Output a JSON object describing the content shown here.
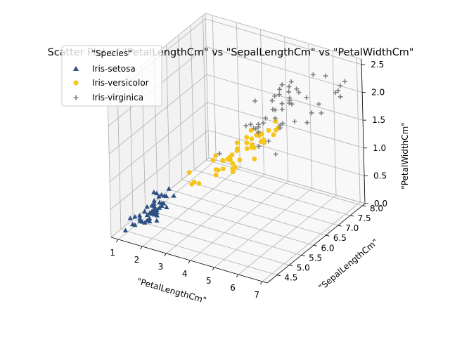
{
  "chart_data": {
    "type": "scatter",
    "projection": "3d",
    "title": "Scatter Plot of \"PetalLengthCm\" vs \"SepalLengthCm\" vs \"PetalWidthCm\"",
    "xlabel": "\"PetalLengthCm\"",
    "ylabel": "\"SepalLengthCm\"",
    "zlabel": "\"PetalWidthCm\"",
    "xlim": [
      0.7,
      7.2
    ],
    "ylim": [
      4.1,
      8.1
    ],
    "zlim": [
      0.0,
      2.6
    ],
    "xticks": [
      "1",
      "2",
      "3",
      "4",
      "5",
      "6",
      "7"
    ],
    "yticks": [
      "4.5",
      "5.0",
      "5.5",
      "6.0",
      "6.5",
      "7.0",
      "7.5",
      "8.0"
    ],
    "zticks": [
      "0.0",
      "0.5",
      "1.0",
      "1.5",
      "2.0",
      "2.5"
    ],
    "grid": true,
    "legend": {
      "title": "\"Species\"",
      "placement": "upper-left"
    },
    "series": [
      {
        "name": "Iris-setosa",
        "color": "#2d4f82",
        "marker": "triangle",
        "points": [
          [
            1.4,
            5.1,
            0.2
          ],
          [
            1.4,
            4.9,
            0.2
          ],
          [
            1.3,
            4.7,
            0.2
          ],
          [
            1.5,
            4.6,
            0.2
          ],
          [
            1.4,
            5.0,
            0.2
          ],
          [
            1.7,
            5.4,
            0.4
          ],
          [
            1.4,
            4.6,
            0.3
          ],
          [
            1.5,
            5.0,
            0.2
          ],
          [
            1.4,
            4.4,
            0.2
          ],
          [
            1.5,
            4.9,
            0.1
          ],
          [
            1.5,
            5.4,
            0.2
          ],
          [
            1.6,
            4.8,
            0.2
          ],
          [
            1.4,
            4.8,
            0.1
          ],
          [
            1.1,
            4.3,
            0.1
          ],
          [
            1.2,
            5.8,
            0.2
          ],
          [
            1.5,
            5.7,
            0.4
          ],
          [
            1.3,
            5.4,
            0.4
          ],
          [
            1.4,
            5.1,
            0.3
          ],
          [
            1.7,
            5.7,
            0.3
          ],
          [
            1.5,
            5.1,
            0.3
          ],
          [
            1.7,
            5.4,
            0.2
          ],
          [
            1.5,
            5.1,
            0.4
          ],
          [
            1.0,
            4.6,
            0.2
          ],
          [
            1.7,
            5.1,
            0.5
          ],
          [
            1.9,
            4.8,
            0.2
          ],
          [
            1.6,
            5.0,
            0.2
          ],
          [
            1.6,
            5.0,
            0.4
          ],
          [
            1.5,
            5.2,
            0.2
          ],
          [
            1.4,
            5.2,
            0.2
          ],
          [
            1.6,
            4.7,
            0.2
          ],
          [
            1.6,
            4.8,
            0.2
          ],
          [
            1.5,
            5.4,
            0.4
          ],
          [
            1.5,
            5.2,
            0.1
          ],
          [
            1.4,
            5.5,
            0.2
          ],
          [
            1.2,
            5.0,
            0.2
          ],
          [
            1.3,
            5.5,
            0.2
          ],
          [
            1.3,
            4.4,
            0.2
          ],
          [
            1.5,
            5.1,
            0.2
          ],
          [
            1.3,
            5.0,
            0.3
          ],
          [
            1.3,
            4.5,
            0.3
          ],
          [
            1.6,
            5.0,
            0.6
          ],
          [
            1.9,
            5.1,
            0.4
          ],
          [
            1.4,
            4.8,
            0.3
          ],
          [
            1.6,
            5.1,
            0.2
          ],
          [
            1.4,
            4.6,
            0.2
          ],
          [
            1.5,
            5.3,
            0.2
          ],
          [
            1.4,
            5.0,
            0.2
          ]
        ]
      },
      {
        "name": "Iris-versicolor",
        "color": "#f5c518",
        "marker": "circle",
        "points": [
          [
            4.7,
            7.0,
            1.4
          ],
          [
            4.5,
            6.4,
            1.5
          ],
          [
            4.9,
            6.9,
            1.5
          ],
          [
            4.0,
            5.5,
            1.3
          ],
          [
            4.6,
            6.5,
            1.5
          ],
          [
            4.5,
            5.7,
            1.3
          ],
          [
            4.7,
            6.3,
            1.6
          ],
          [
            3.3,
            4.9,
            1.0
          ],
          [
            4.6,
            6.6,
            1.3
          ],
          [
            3.9,
            5.2,
            1.4
          ],
          [
            3.5,
            5.0,
            1.0
          ],
          [
            4.2,
            5.9,
            1.5
          ],
          [
            4.0,
            6.0,
            1.0
          ],
          [
            4.7,
            6.1,
            1.4
          ],
          [
            3.6,
            5.6,
            1.3
          ],
          [
            4.4,
            6.7,
            1.4
          ],
          [
            4.5,
            5.6,
            1.5
          ],
          [
            4.1,
            5.8,
            1.0
          ],
          [
            4.5,
            6.2,
            1.5
          ],
          [
            3.9,
            5.6,
            1.1
          ],
          [
            4.8,
            5.9,
            1.8
          ],
          [
            4.0,
            6.1,
            1.3
          ],
          [
            4.9,
            6.3,
            1.5
          ],
          [
            4.7,
            6.1,
            1.2
          ],
          [
            4.3,
            6.4,
            1.3
          ],
          [
            4.4,
            6.6,
            1.4
          ],
          [
            4.8,
            6.8,
            1.4
          ],
          [
            5.0,
            6.7,
            1.7
          ],
          [
            4.5,
            6.0,
            1.5
          ],
          [
            3.5,
            5.7,
            1.0
          ],
          [
            3.8,
            5.5,
            1.1
          ],
          [
            3.7,
            5.5,
            1.0
          ],
          [
            3.9,
            5.8,
            1.2
          ],
          [
            5.1,
            6.0,
            1.6
          ],
          [
            4.5,
            5.4,
            1.5
          ],
          [
            4.5,
            6.0,
            1.6
          ],
          [
            4.7,
            6.7,
            1.5
          ],
          [
            4.4,
            6.3,
            1.3
          ],
          [
            4.1,
            5.6,
            1.3
          ],
          [
            4.0,
            5.5,
            1.3
          ],
          [
            4.4,
            5.5,
            1.2
          ],
          [
            4.6,
            6.1,
            1.4
          ],
          [
            4.0,
            5.8,
            1.2
          ],
          [
            3.3,
            5.0,
            1.0
          ],
          [
            4.2,
            5.6,
            1.3
          ],
          [
            4.2,
            5.7,
            1.2
          ],
          [
            4.3,
            6.2,
            1.3
          ],
          [
            3.0,
            5.1,
            1.1
          ],
          [
            4.1,
            5.7,
            1.3
          ]
        ]
      },
      {
        "name": "Iris-virginica",
        "color": "#7f7f7f",
        "marker": "plus",
        "points": [
          [
            6.0,
            6.3,
            2.5
          ],
          [
            5.1,
            5.8,
            1.9
          ],
          [
            5.9,
            7.1,
            2.1
          ],
          [
            5.6,
            6.3,
            1.8
          ],
          [
            5.8,
            6.5,
            2.2
          ],
          [
            6.6,
            7.6,
            2.1
          ],
          [
            4.5,
            4.9,
            1.7
          ],
          [
            6.3,
            7.3,
            1.8
          ],
          [
            5.8,
            6.7,
            1.8
          ],
          [
            6.1,
            7.2,
            2.5
          ],
          [
            5.1,
            6.5,
            2.0
          ],
          [
            5.3,
            6.4,
            1.9
          ],
          [
            5.5,
            6.8,
            2.1
          ],
          [
            5.0,
            5.7,
            2.0
          ],
          [
            5.1,
            5.8,
            2.4
          ],
          [
            5.3,
            6.4,
            2.3
          ],
          [
            5.5,
            6.5,
            1.8
          ],
          [
            6.7,
            7.7,
            2.2
          ],
          [
            6.9,
            7.7,
            2.3
          ],
          [
            5.0,
            6.0,
            1.5
          ],
          [
            5.7,
            6.9,
            2.3
          ],
          [
            4.9,
            5.6,
            2.0
          ],
          [
            6.7,
            7.7,
            2.0
          ],
          [
            4.9,
            6.3,
            1.8
          ],
          [
            5.7,
            6.7,
            2.1
          ],
          [
            6.0,
            7.2,
            1.8
          ],
          [
            4.8,
            6.2,
            1.8
          ],
          [
            4.9,
            6.1,
            1.8
          ],
          [
            5.6,
            6.4,
            2.1
          ],
          [
            5.8,
            7.2,
            1.6
          ],
          [
            6.1,
            7.4,
            1.9
          ],
          [
            6.4,
            7.9,
            2.0
          ],
          [
            5.6,
            6.4,
            2.2
          ],
          [
            5.1,
            6.3,
            1.5
          ],
          [
            5.6,
            6.1,
            1.4
          ],
          [
            6.1,
            7.7,
            2.3
          ],
          [
            5.6,
            6.3,
            2.4
          ],
          [
            5.5,
            6.4,
            1.8
          ],
          [
            4.8,
            6.0,
            1.8
          ],
          [
            5.4,
            6.9,
            2.1
          ],
          [
            5.6,
            6.7,
            2.4
          ],
          [
            5.1,
            6.9,
            2.3
          ],
          [
            5.9,
            6.8,
            2.3
          ],
          [
            5.7,
            6.7,
            2.5
          ],
          [
            5.2,
            6.7,
            2.3
          ],
          [
            5.0,
            6.3,
            1.9
          ],
          [
            5.2,
            6.5,
            2.0
          ],
          [
            5.4,
            6.2,
            2.3
          ],
          [
            5.1,
            5.9,
            1.8
          ]
        ]
      }
    ]
  }
}
